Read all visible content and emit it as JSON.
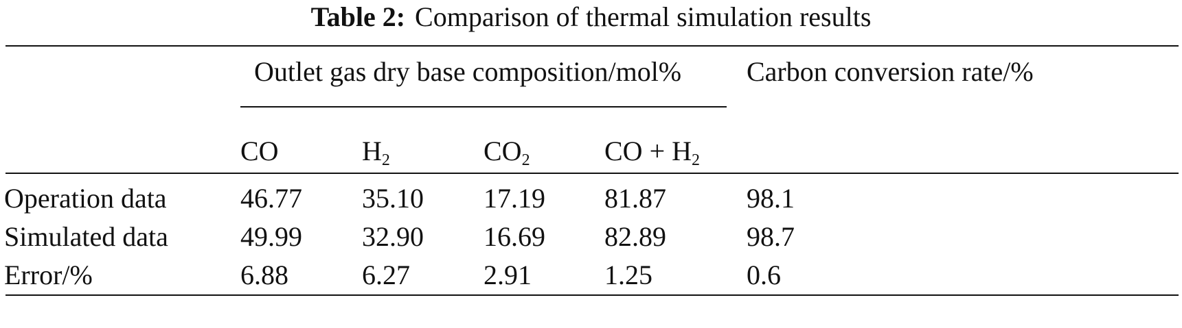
{
  "caption": {
    "label": "Table 2:",
    "title": "Comparison of thermal simulation results"
  },
  "header": {
    "group_label": "Outlet gas dry base composition/mol%",
    "carbon_label": "Carbon conversion rate/%",
    "sub_columns": [
      {
        "base": "CO",
        "sub": "",
        "tail": ""
      },
      {
        "base": "H",
        "sub": "2",
        "tail": ""
      },
      {
        "base": "CO",
        "sub": "2",
        "tail": ""
      },
      {
        "base": "CO + H",
        "sub": "2",
        "tail": ""
      }
    ]
  },
  "rows": [
    {
      "label": "Operation data",
      "values": [
        "46.77",
        "35.10",
        "17.19",
        "81.87",
        "98.1"
      ]
    },
    {
      "label": "Simulated data",
      "values": [
        "49.99",
        "32.90",
        "16.69",
        "82.89",
        "98.7"
      ]
    },
    {
      "label": "Error/%",
      "values": [
        "6.88",
        "6.27",
        "2.91",
        "1.25",
        "0.6"
      ]
    }
  ]
}
